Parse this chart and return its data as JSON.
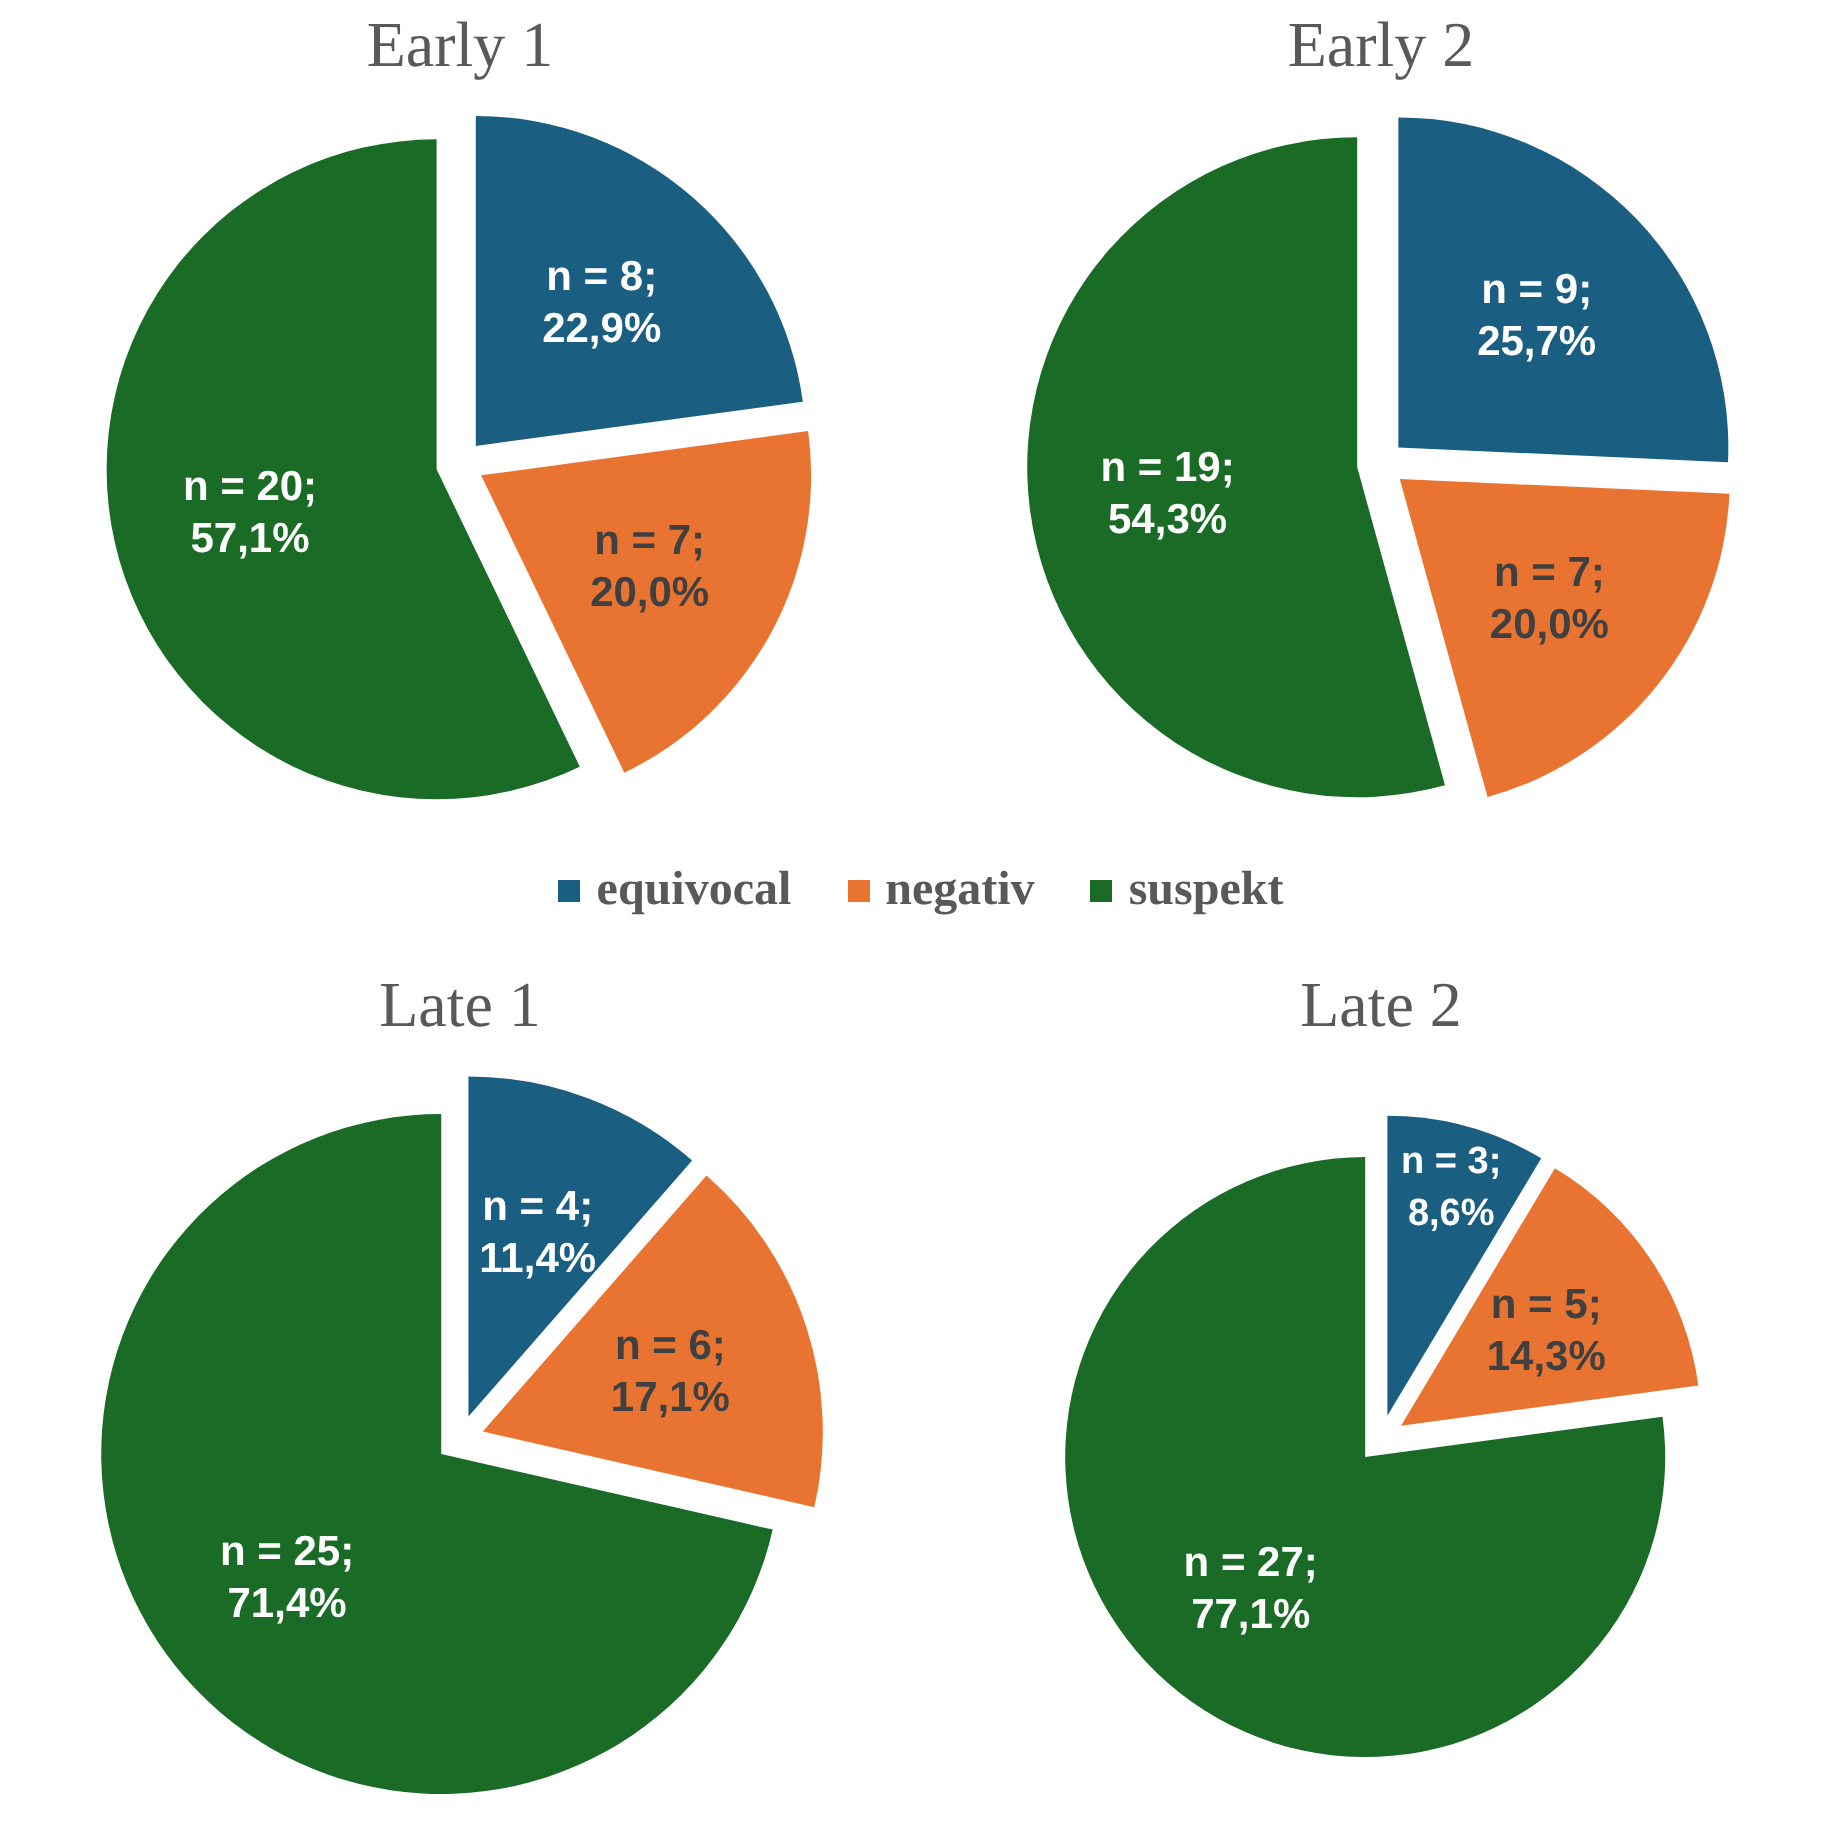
{
  "chart_data": [
    {
      "type": "pie",
      "title": "Early 1",
      "categories": [
        "equivocal",
        "negativ",
        "suspekt"
      ],
      "values": [
        8,
        7,
        20
      ],
      "colors": [
        "#1a5e82",
        "#e97432",
        "#1a6b26"
      ],
      "value_labels": [
        "n = 8; 22,9%",
        "n = 7; 20,0%",
        "n = 20; 57,1%"
      ],
      "legend": "bottom"
    },
    {
      "type": "pie",
      "title": "Early 2",
      "categories": [
        null,
        null,
        null
      ],
      "values": [
        9,
        7,
        19
      ],
      "colors": [
        "#1a5e82",
        "#e97432",
        "#1a6b26"
      ],
      "value_labels": [
        "n = 9; 25,7%",
        "n = 7; 20,0%",
        "n = 19; 54,3%"
      ]
    },
    {
      "type": "pie",
      "title": "Late 1",
      "categories": [
        null,
        null,
        null
      ],
      "values": [
        4,
        6,
        25
      ],
      "colors": [
        "#1a5e82",
        "#e97432",
        "#1a6b26"
      ],
      "value_labels": [
        "n = 4; 11,4%",
        "n = 6; 17,1%",
        "n = 25; 71,4%"
      ]
    },
    {
      "type": "pie",
      "title": "Late 2",
      "categories": [
        null,
        null,
        null
      ],
      "values": [
        3,
        5,
        27
      ],
      "colors": [
        "#1a5e82",
        "#e97432",
        "#1a6b26"
      ],
      "value_labels": [
        "n = 3; 8,6%",
        "n = 5; 14,3%",
        "n = 27; 77,1%"
      ]
    }
  ]
}
